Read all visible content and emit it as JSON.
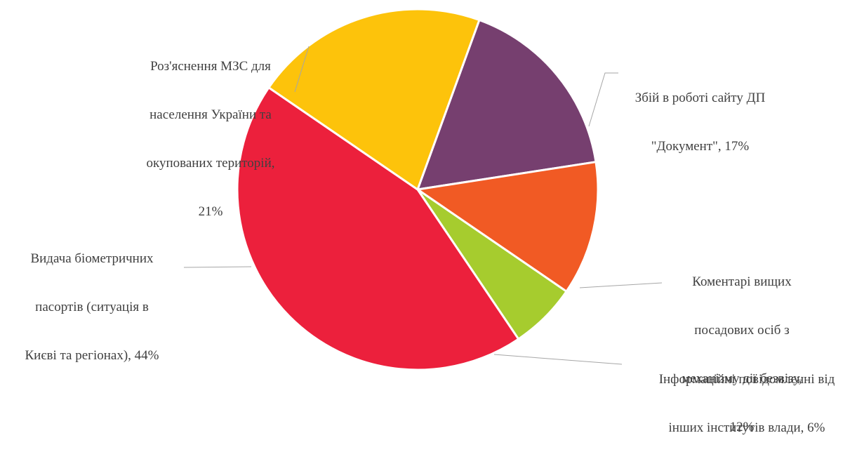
{
  "chart_data": {
    "type": "pie",
    "title": "",
    "start_angle_deg": 20,
    "direction": "clockwise",
    "slices": [
      {
        "name": "Збій в роботі сайту ДП \"Документ\"",
        "value": 17,
        "value_label": "17%",
        "label_lines": [
          "Збій в роботі сайту ДП",
          "\"Документ\", 17%"
        ],
        "color": "#763f6f"
      },
      {
        "name": "Коментарі вищих посадових осіб з механізму дії безвізу",
        "value": 12,
        "value_label": "12%",
        "label_lines": [
          "Коментарі вищих",
          "посадових осіб з",
          "механізму дії безвізу,",
          "12%"
        ],
        "color": "#f15a24"
      },
      {
        "name": "Інформаційні повідомленні від інших інститутів влади",
        "value": 6,
        "value_label": "6%",
        "label_lines": [
          "Інформаційні повідомленні від",
          "інших інститутів влади, 6%"
        ],
        "color": "#a6cc2e"
      },
      {
        "name": "Видача біометричних пасортів (ситуація в Києві та регіонах)",
        "value": 44,
        "value_label": "44%",
        "label_lines": [
          "Видача біометричних",
          "пасортів (ситуація в",
          "Києві та регіонах), 44%"
        ],
        "color": "#ec203c"
      },
      {
        "name": "Роз'яснення МЗС для населення України та окупованих територій",
        "value": 21,
        "value_label": "21%",
        "label_lines": [
          "Роз'яснення МЗС для",
          "населення України та",
          "окупованих територій,",
          "21%"
        ],
        "color": "#fdc30b"
      }
    ]
  }
}
